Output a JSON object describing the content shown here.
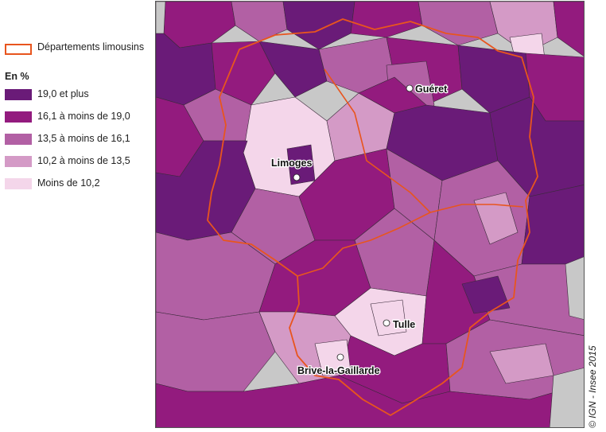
{
  "legend": {
    "boundary_label": "Départements limousins",
    "unit_title": "En %",
    "classes": [
      {
        "label": "19,0 et plus",
        "color": "#6a1b78"
      },
      {
        "label": "16,1 à moins de 19,0",
        "color": "#931b7e"
      },
      {
        "label": "13,5 à moins de 16,1",
        "color": "#b260a4"
      },
      {
        "label": "10,2 à moins de 13,5",
        "color": "#d49ac6"
      },
      {
        "label": "Moins de 10,2",
        "color": "#f4d6ea"
      }
    ],
    "boundary_color": "#e8551e"
  },
  "cities": [
    {
      "name": "Guéret"
    },
    {
      "name": "Limoges"
    },
    {
      "name": "Tulle"
    },
    {
      "name": "Brive-la-Gaillarde"
    }
  ],
  "credit": "© IGN - Insee 2015"
}
